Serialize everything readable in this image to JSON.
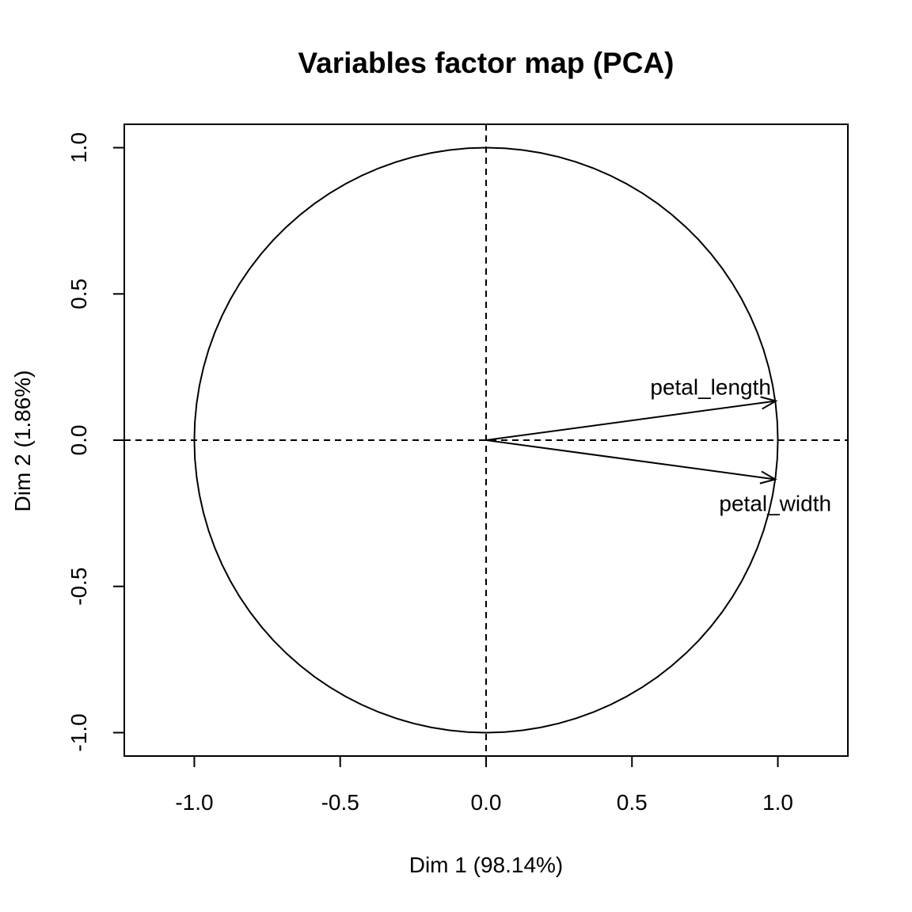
{
  "chart_data": {
    "type": "scatter",
    "title": "Variables factor map (PCA)",
    "xlabel": "Dim 1 (98.14%)",
    "ylabel": "Dim 2 (1.86%)",
    "xlim": [
      -1.24,
      1.24
    ],
    "ylim": [
      -1.08,
      1.08
    ],
    "xticks": [
      -1.0,
      -0.5,
      0.0,
      0.5,
      1.0
    ],
    "xtick_labels": [
      "-1.0",
      "-0.5",
      "0.0",
      "0.5",
      "1.0"
    ],
    "yticks": [
      -1.0,
      -0.5,
      0.0,
      0.5,
      1.0
    ],
    "ytick_labels": [
      "-1.0",
      "-0.5",
      "0.0",
      "0.5",
      "1.0"
    ],
    "correlation_circle_radius": 1.0,
    "reference_lines": {
      "x": 0.0,
      "y": 0.0,
      "style": "dashed"
    },
    "grid": false,
    "legend": "none",
    "variables": [
      {
        "name": "petal_length",
        "x": 0.993,
        "y": 0.134
      },
      {
        "name": "petal_width",
        "x": 0.991,
        "y": -0.134
      }
    ]
  }
}
